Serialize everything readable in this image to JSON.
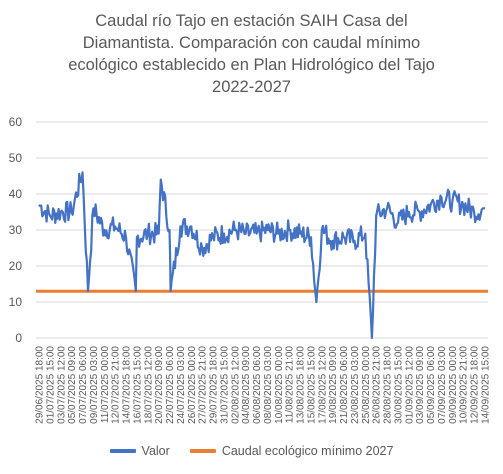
{
  "chart_data": {
    "type": "line",
    "title_lines": [
      "Caudal río Tajo en estación SAIH Casa del",
      "Diamantista. Comparación con caudal mínimo",
      "ecológico establecido en Plan Hidrológico del Tajo",
      "2022-2027"
    ],
    "ylim": [
      0,
      60
    ],
    "yticks": [
      0,
      10,
      20,
      30,
      40,
      50,
      60
    ],
    "grid": true,
    "legend_position": "bottom",
    "x_tick_labels": [
      "29/06/2025 18:00",
      "01/07/2025 15:00",
      "03/07/2025 12:00",
      "05/07/2025 09:00",
      "07/07/2025 06:00",
      "09/07/2025 03:00",
      "11/07/2025 00:00",
      "12/07/2025 21:00",
      "14/07/2025 18:00",
      "16/07/2025 15:00",
      "18/07/2025 12:00",
      "20/07/2025 09:00",
      "22/07/2025 06:00",
      "24/07/2025 03:00",
      "26/07/2025 00:00",
      "27/07/2025 21:00",
      "29/07/2025 18:00",
      "31/07/2025 15:00",
      "02/08/2025 12:00",
      "04/08/2025 09:00",
      "06/08/2025 06:00",
      "08/08/2025 03:00",
      "10/08/2025 00:00",
      "11/08/2025 21:00",
      "13/08/2025 18:00",
      "15/08/2025 15:00",
      "17/08/2025 12:00",
      "19/08/2025 09:00",
      "21/08/2025 06:00",
      "23/08/2025 03:00",
      "25/08/2025 00:00",
      "26/08/2025 21:00",
      "28/08/2025 18:00",
      "30/08/2025 15:00",
      "01/09/2025 12:00",
      "03/09/2025 09:00",
      "05/09/2025 06:00",
      "07/09/2025 03:00",
      "09/09/2025 00:00",
      "10/09/2025 21:00",
      "12/09/2025 18:00",
      "14/09/2025 15:00"
    ],
    "series": [
      {
        "name": "Valor",
        "color": "#4472C4",
        "x": [
          "29/06/2025 18:00",
          "01/07/2025 15:00",
          "03/07/2025 12:00",
          "05/07/2025 09:00",
          "07/07/2025 06:00",
          "09/07/2025 03:00",
          "11/07/2025 00:00",
          "12/07/2025 21:00",
          "14/07/2025 18:00",
          "16/07/2025 15:00",
          "18/07/2025 12:00",
          "20/07/2025 09:00",
          "22/07/2025 06:00",
          "24/07/2025 03:00",
          "26/07/2025 00:00",
          "27/07/2025 21:00",
          "29/07/2025 18:00",
          "31/07/2025 15:00",
          "02/08/2025 12:00",
          "04/08/2025 09:00",
          "06/08/2025 06:00",
          "08/08/2025 03:00",
          "10/08/2025 00:00",
          "11/08/2025 21:00",
          "13/08/2025 18:00",
          "15/08/2025 15:00",
          "17/08/2025 12:00",
          "19/08/2025 09:00",
          "21/08/2025 06:00",
          "23/08/2025 03:00",
          "25/08/2025 00:00",
          "26/08/2025 21:00",
          "28/08/2025 18:00",
          "30/08/2025 15:00",
          "01/09/2025 12:00",
          "03/09/2025 09:00",
          "05/09/2025 06:00",
          "07/09/2025 03:00",
          "09/09/2025 00:00",
          "10/09/2025 21:00",
          "12/09/2025 18:00",
          "14/09/2025 15:00"
        ],
        "values": [
          37,
          34,
          35,
          35,
          46,
          36,
          30,
          31,
          28,
          28,
          29,
          29,
          30,
          31,
          31,
          25,
          28,
          29,
          30,
          29,
          29,
          30,
          29,
          30,
          29,
          28,
          30,
          27,
          28,
          27,
          29,
          34,
          36,
          32,
          35,
          35,
          37,
          39,
          38,
          37,
          35,
          36
        ],
        "extra_points": [
          [
            4.5,
            13
          ],
          [
            8.9,
            13
          ],
          [
            11.2,
            44
          ],
          [
            12.1,
            13
          ],
          [
            25.5,
            10
          ],
          [
            30.6,
            0
          ]
        ]
      },
      {
        "name": "Caudal ecológico mínimo 2027",
        "color": "#ED7D31",
        "values_constant": 13
      }
    ]
  }
}
